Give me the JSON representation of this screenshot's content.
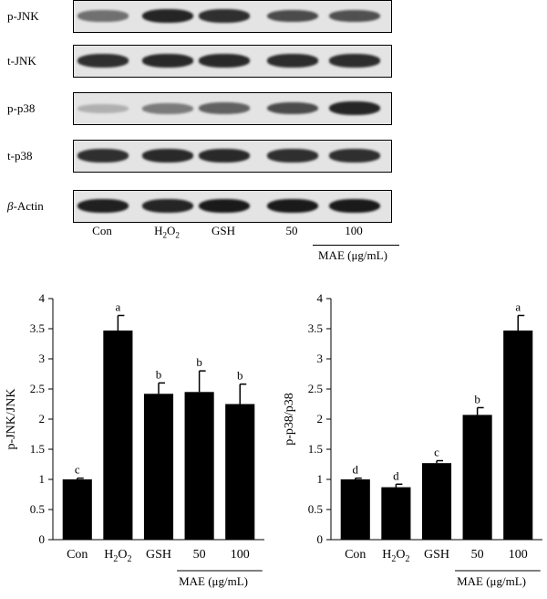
{
  "blot": {
    "rows": [
      {
        "label": "p-JNK",
        "intensity": [
          0.55,
          0.9,
          0.85,
          0.72,
          0.7
        ]
      },
      {
        "label": "t-JNK",
        "intensity": [
          0.85,
          0.88,
          0.88,
          0.86,
          0.86
        ]
      },
      {
        "label": "p-p38",
        "intensity": [
          0.25,
          0.5,
          0.62,
          0.72,
          0.9
        ]
      },
      {
        "label": "t-p38",
        "intensity": [
          0.85,
          0.88,
          0.88,
          0.85,
          0.85
        ]
      },
      {
        "label": "β-Actin",
        "intensity": [
          0.92,
          0.9,
          0.95,
          0.95,
          0.95
        ]
      }
    ],
    "lanes": [
      "Con",
      "H2O2",
      "GSH",
      "50",
      "100"
    ],
    "treatment_label": "MAE (μg/mL)"
  },
  "chart_data": [
    {
      "type": "bar",
      "categories": [
        "Con",
        "H2O2",
        "GSH",
        "50",
        "100"
      ],
      "values": [
        1.0,
        3.47,
        2.42,
        2.45,
        2.25
      ],
      "errors": [
        0.02,
        0.25,
        0.18,
        0.35,
        0.33
      ],
      "significance": [
        "c",
        "a",
        "b",
        "b",
        "b"
      ],
      "ylabel": "p-JNK/JNK",
      "ylim": [
        0,
        4
      ],
      "yticks": [
        "0",
        "0.5",
        "1",
        "1.5",
        "2",
        "2.5",
        "3",
        "3.5",
        "4"
      ],
      "group_label": "MAE (μg/mL)",
      "bar_color": "#000000"
    },
    {
      "type": "bar",
      "categories": [
        "Con",
        "H2O2",
        "GSH",
        "50",
        "100"
      ],
      "values": [
        1.0,
        0.87,
        1.27,
        2.07,
        3.47
      ],
      "errors": [
        0.02,
        0.05,
        0.04,
        0.12,
        0.25
      ],
      "significance": [
        "d",
        "d",
        "c",
        "b",
        "a"
      ],
      "ylabel": "p-p38/p38",
      "ylim": [
        0,
        4
      ],
      "yticks": [
        "0",
        "0.5",
        "1",
        "1.5",
        "2",
        "2.5",
        "3",
        "3.5",
        "4"
      ],
      "group_label": "MAE (μg/mL)",
      "bar_color": "#000000"
    }
  ]
}
